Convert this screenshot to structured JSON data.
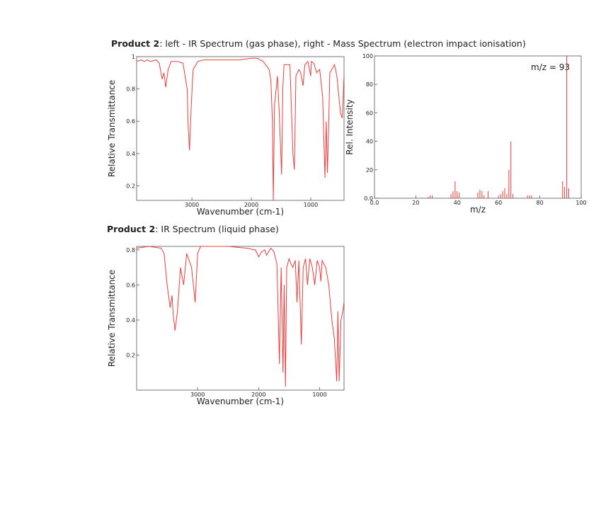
{
  "headings": [
    {
      "product": "Product 2",
      "text": ": left - IR Spectrum (gas phase), right - Mass Spectrum (electron impact ionisation)"
    },
    {
      "product": "Product 2",
      "text": ": IR Spectrum (liquid phase)"
    }
  ],
  "chart_data": [
    {
      "type": "line",
      "xlabel": "Wavenumber (cm-1)",
      "ylabel": "Relative Transmittance",
      "color": "#f03c3c",
      "xlim": [
        3930,
        440
      ],
      "xticks": [
        3000,
        2000,
        1000
      ],
      "ylim": [
        0.11,
        1
      ],
      "yticks": [
        0.2,
        0.4,
        0.6,
        0.8,
        1
      ],
      "x": [
        3930,
        3850,
        3800,
        3750,
        3700,
        3600,
        3550,
        3500,
        3470,
        3440,
        3400,
        3350,
        3250,
        3150,
        3080,
        3060,
        3040,
        3010,
        2980,
        2900,
        2800,
        2500,
        2200,
        2000,
        1900,
        1800,
        1700,
        1670,
        1645,
        1630,
        1610,
        1560,
        1530,
        1490,
        1470,
        1450,
        1400,
        1350,
        1300,
        1275,
        1250,
        1200,
        1170,
        1130,
        1100,
        1050,
        1000,
        990,
        950,
        900,
        850,
        800,
        760,
        740,
        720,
        700,
        680,
        600,
        560,
        500,
        470,
        440
      ],
      "values": [
        0.97,
        0.98,
        0.97,
        0.98,
        0.97,
        0.98,
        0.96,
        0.86,
        0.9,
        0.81,
        0.92,
        0.97,
        0.97,
        0.96,
        0.8,
        0.55,
        0.42,
        0.7,
        0.92,
        0.97,
        0.98,
        0.98,
        0.98,
        0.99,
        0.99,
        0.97,
        0.92,
        0.85,
        0.6,
        0.11,
        0.7,
        0.88,
        0.65,
        0.27,
        0.8,
        0.95,
        0.95,
        0.95,
        0.4,
        0.3,
        0.88,
        0.92,
        0.9,
        0.82,
        0.95,
        0.97,
        0.88,
        0.97,
        0.96,
        0.9,
        0.92,
        0.75,
        0.25,
        0.6,
        0.28,
        0.55,
        0.9,
        0.95,
        0.88,
        0.65,
        0.62,
        0.88
      ]
    },
    {
      "type": "bar",
      "xlabel": "m/z",
      "ylabel": "Rel. Intensity",
      "color": "#f03c3c",
      "annotation": "m/z = 93",
      "xlim": [
        0,
        100
      ],
      "xticks": [
        {
          "value": 0,
          "label": "0.0"
        },
        20,
        40,
        60,
        80,
        100
      ],
      "ylim": [
        0,
        100
      ],
      "yticks": [
        {
          "value": 0,
          "label": "0.0"
        },
        20,
        40,
        60,
        80,
        100
      ],
      "x": [
        26,
        27,
        28,
        37,
        38,
        39,
        40,
        41,
        50,
        51,
        52,
        53,
        55,
        61,
        62,
        63,
        64,
        65,
        66,
        67,
        74,
        75,
        76,
        91,
        92,
        93,
        94
      ],
      "values": [
        1,
        2,
        2,
        3,
        5,
        12,
        5,
        4,
        4,
        6,
        5,
        2,
        5,
        3,
        5,
        7,
        3,
        20,
        40,
        3,
        2,
        2,
        2,
        12,
        8,
        100,
        7
      ]
    },
    {
      "type": "line",
      "xlabel": "Wavenumber (cm-1)",
      "ylabel": "Relative Transmittance",
      "color": "#f03c3c",
      "xlim": [
        4000,
        600
      ],
      "xticks": [
        3000,
        2000,
        1000
      ],
      "ylim": [
        0,
        0.82
      ],
      "yticks": [
        0.2,
        0.4,
        0.6,
        0.8
      ],
      "x": [
        4000,
        3800,
        3600,
        3550,
        3500,
        3450,
        3420,
        3400,
        3370,
        3330,
        3280,
        3230,
        3180,
        3100,
        3040,
        3000,
        2950,
        2800,
        2500,
        2200,
        2050,
        2000,
        1950,
        1900,
        1870,
        1800,
        1750,
        1700,
        1660,
        1630,
        1600,
        1580,
        1560,
        1540,
        1500,
        1470,
        1440,
        1400,
        1370,
        1340,
        1300,
        1270,
        1230,
        1200,
        1160,
        1120,
        1080,
        1040,
        1000,
        980,
        960,
        900,
        850,
        800,
        760,
        720,
        700,
        680,
        650,
        620,
        600
      ],
      "values": [
        0.81,
        0.82,
        0.81,
        0.78,
        0.6,
        0.47,
        0.54,
        0.43,
        0.34,
        0.45,
        0.7,
        0.6,
        0.78,
        0.7,
        0.5,
        0.78,
        0.82,
        0.82,
        0.82,
        0.81,
        0.8,
        0.76,
        0.79,
        0.8,
        0.77,
        0.81,
        0.79,
        0.72,
        0.15,
        0.7,
        0.1,
        0.6,
        0.02,
        0.7,
        0.75,
        0.72,
        0.7,
        0.74,
        0.5,
        0.74,
        0.26,
        0.7,
        0.75,
        0.6,
        0.75,
        0.7,
        0.6,
        0.74,
        0.7,
        0.62,
        0.74,
        0.7,
        0.6,
        0.4,
        0.3,
        0.05,
        0.45,
        0.05,
        0.4,
        0.45,
        0.5
      ]
    }
  ]
}
